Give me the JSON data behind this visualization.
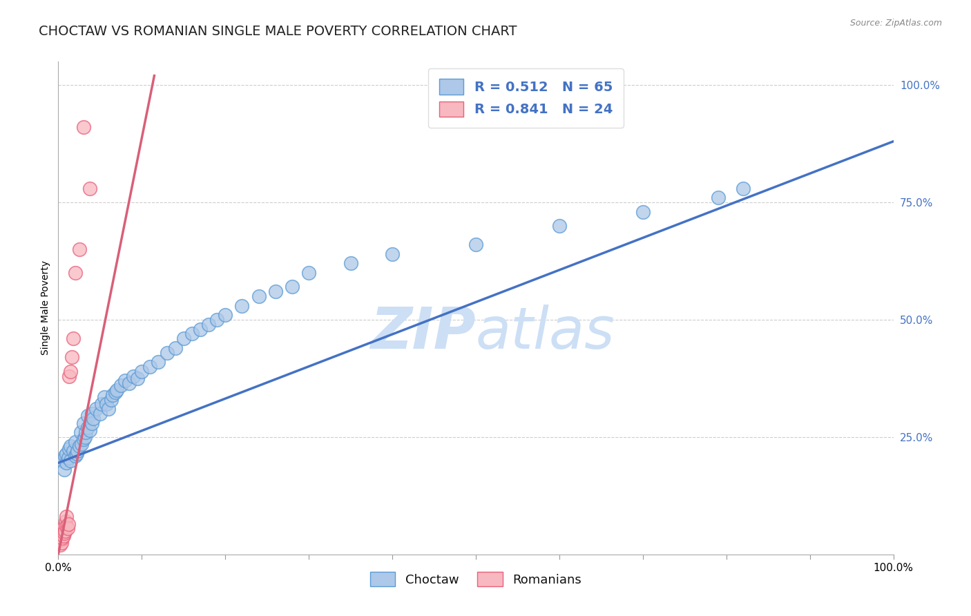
{
  "title": "CHOCTAW VS ROMANIAN SINGLE MALE POVERTY CORRELATION CHART",
  "source_text": "Source: ZipAtlas.com",
  "ylabel": "Single Male Poverty",
  "xlim": [
    0.0,
    1.0
  ],
  "ylim": [
    0.0,
    1.05
  ],
  "xticks": [
    0.0,
    0.1,
    0.2,
    0.3,
    0.4,
    0.5,
    0.6,
    0.7,
    0.8,
    0.9,
    1.0
  ],
  "yticks": [
    0.0,
    0.25,
    0.5,
    0.75,
    1.0
  ],
  "choctaw_color": "#adc8e8",
  "choctaw_edge_color": "#5b9bd5",
  "romanian_color": "#f8b8c0",
  "romanian_edge_color": "#e8607a",
  "choctaw_line_color": "#4472c4",
  "romanian_line_color": "#d95f78",
  "legend_text_color": "#4472c4",
  "watermark_color": "#ccdff5",
  "background_color": "#ffffff",
  "grid_color": "#cccccc",
  "title_fontsize": 14,
  "axis_label_fontsize": 10,
  "tick_fontsize": 11,
  "legend_fontsize": 14,
  "source_fontsize": 9,
  "choctaw_R": 0.512,
  "choctaw_N": 65,
  "romanian_R": 0.841,
  "romanian_N": 24,
  "choctaw_scatter_x": [
    0.005,
    0.007,
    0.008,
    0.01,
    0.01,
    0.012,
    0.013,
    0.015,
    0.015,
    0.018,
    0.02,
    0.02,
    0.022,
    0.023,
    0.025,
    0.027,
    0.028,
    0.03,
    0.03,
    0.032,
    0.033,
    0.035,
    0.035,
    0.038,
    0.04,
    0.04,
    0.042,
    0.045,
    0.05,
    0.052,
    0.055,
    0.058,
    0.06,
    0.063,
    0.065,
    0.068,
    0.07,
    0.075,
    0.08,
    0.085,
    0.09,
    0.095,
    0.1,
    0.11,
    0.12,
    0.13,
    0.14,
    0.15,
    0.16,
    0.17,
    0.18,
    0.19,
    0.2,
    0.22,
    0.24,
    0.26,
    0.28,
    0.3,
    0.35,
    0.4,
    0.5,
    0.6,
    0.7,
    0.79,
    0.82
  ],
  "choctaw_scatter_y": [
    0.2,
    0.18,
    0.21,
    0.195,
    0.215,
    0.205,
    0.225,
    0.23,
    0.2,
    0.22,
    0.21,
    0.24,
    0.215,
    0.22,
    0.23,
    0.26,
    0.235,
    0.245,
    0.28,
    0.25,
    0.26,
    0.27,
    0.295,
    0.265,
    0.3,
    0.28,
    0.29,
    0.31,
    0.3,
    0.32,
    0.335,
    0.32,
    0.31,
    0.33,
    0.34,
    0.345,
    0.35,
    0.36,
    0.37,
    0.365,
    0.38,
    0.375,
    0.39,
    0.4,
    0.41,
    0.43,
    0.44,
    0.46,
    0.47,
    0.48,
    0.49,
    0.5,
    0.51,
    0.53,
    0.55,
    0.56,
    0.57,
    0.6,
    0.62,
    0.64,
    0.66,
    0.7,
    0.73,
    0.76,
    0.78
  ],
  "romanian_scatter_x": [
    0.002,
    0.003,
    0.003,
    0.004,
    0.005,
    0.005,
    0.006,
    0.006,
    0.007,
    0.007,
    0.008,
    0.009,
    0.01,
    0.01,
    0.011,
    0.012,
    0.013,
    0.015,
    0.016,
    0.018,
    0.02,
    0.025,
    0.03,
    0.038
  ],
  "romanian_scatter_y": [
    0.02,
    0.03,
    0.04,
    0.025,
    0.035,
    0.05,
    0.04,
    0.055,
    0.045,
    0.06,
    0.05,
    0.07,
    0.06,
    0.08,
    0.055,
    0.065,
    0.38,
    0.39,
    0.42,
    0.46,
    0.6,
    0.65,
    0.91,
    0.78
  ],
  "choctaw_line_x": [
    0.0,
    1.0
  ],
  "choctaw_line_y": [
    0.195,
    0.88
  ],
  "romanian_line_x": [
    0.0,
    0.115
  ],
  "romanian_line_y": [
    0.0,
    1.02
  ]
}
